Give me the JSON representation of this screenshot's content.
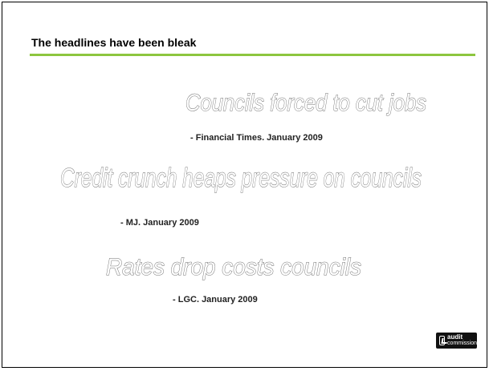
{
  "slide": {
    "title": "The headlines have been bleak",
    "accent_color": "#8dc63f",
    "headlines": [
      {
        "text": "Councils forced to cut jobs",
        "source": "Financial Times. January 2009"
      },
      {
        "text": "Credit crunch heaps pressure on councils",
        "source": "MJ. January 2009"
      },
      {
        "text": "Rates drop costs councils",
        "source": "LGC. January 2009"
      }
    ],
    "source_prefix": "- ",
    "logo": {
      "line1": "audit",
      "line2": "commission"
    }
  }
}
